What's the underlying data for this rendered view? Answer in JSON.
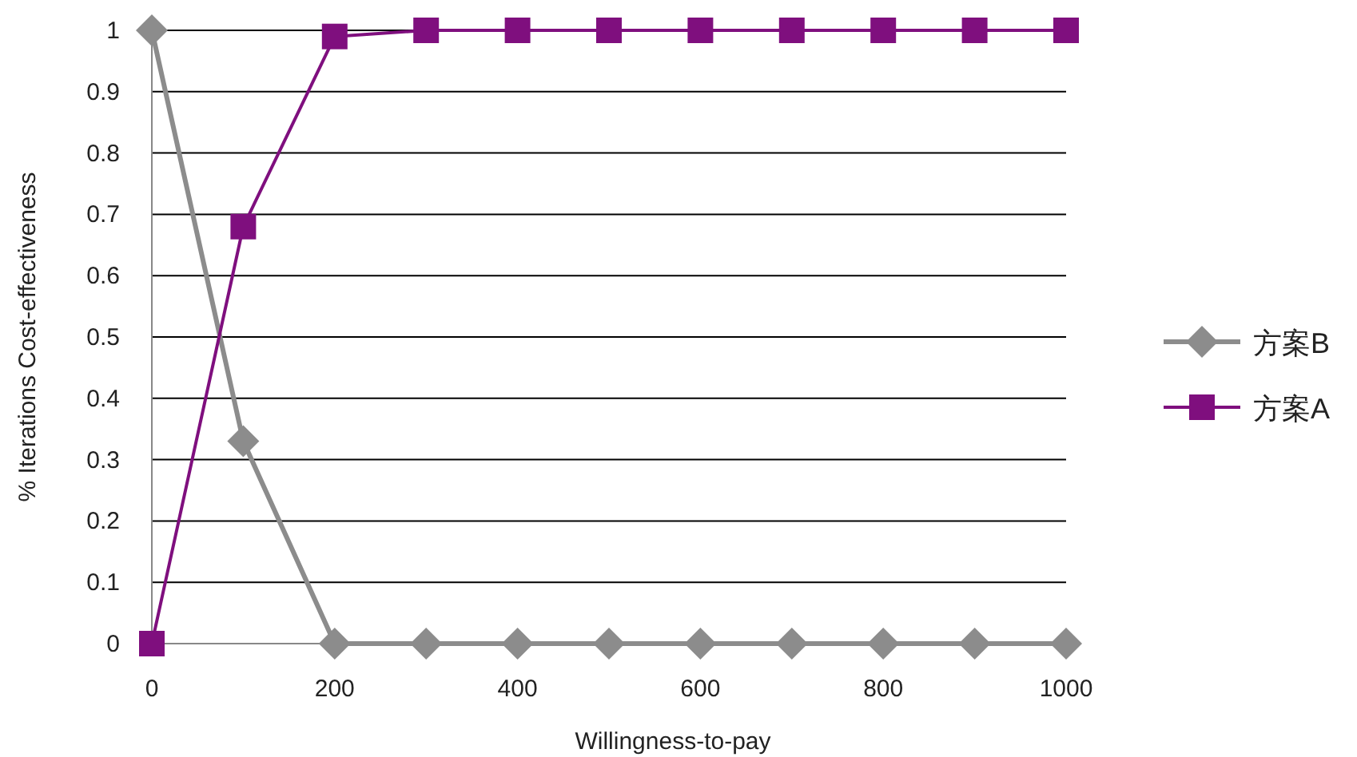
{
  "chart_data": {
    "type": "line",
    "xlabel": "Willingness-to-pay",
    "ylabel": "% Iterations Cost-effectiveness",
    "x": [
      0,
      100,
      200,
      300,
      400,
      500,
      600,
      700,
      800,
      900,
      1000
    ],
    "series": [
      {
        "name": "方案B",
        "color": "#8c8c8c",
        "marker": "diamond",
        "values": [
          1,
          0.33,
          0,
          0,
          0,
          0,
          0,
          0,
          0,
          0,
          0
        ]
      },
      {
        "name": "方案A",
        "color": "#7f0f7e",
        "marker": "square",
        "values": [
          0,
          0.68,
          0.99,
          1,
          1,
          1,
          1,
          1,
          1,
          1,
          1
        ]
      }
    ],
    "xlim": [
      0,
      1000
    ],
    "xticks": [
      0,
      200,
      400,
      600,
      800,
      1000
    ],
    "ylim": [
      0,
      1
    ],
    "yticks": [
      0,
      0.1,
      0.2,
      0.3,
      0.4,
      0.5,
      0.6,
      0.7,
      0.8,
      0.9,
      1
    ],
    "grid": "y",
    "legend": "right",
    "line_style": "solid"
  }
}
